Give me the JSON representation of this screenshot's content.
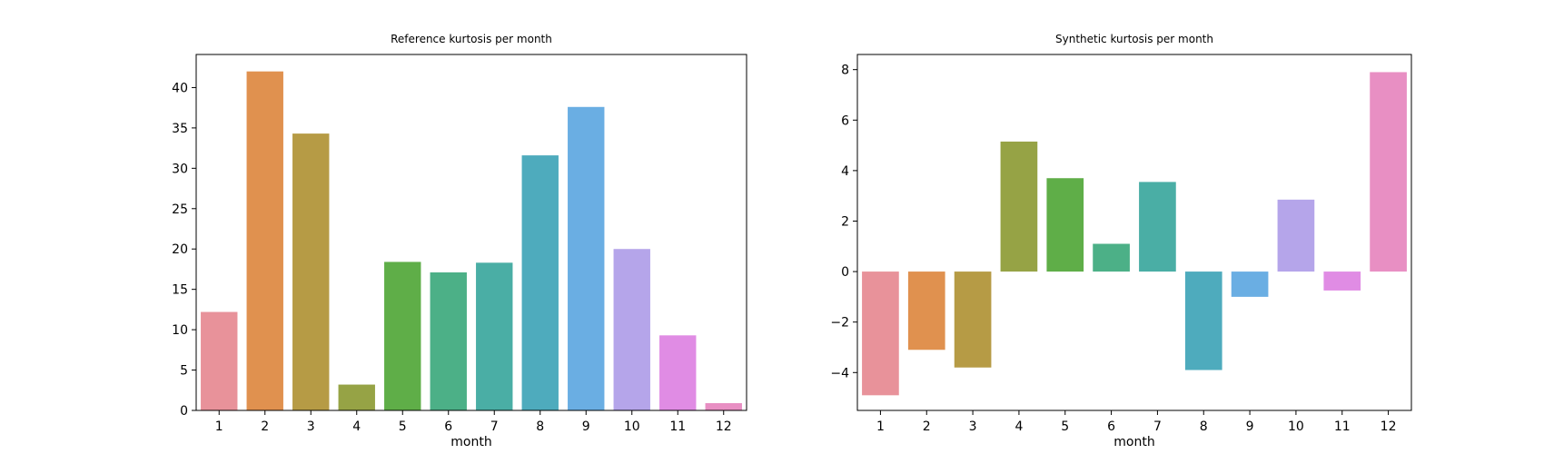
{
  "chart_data": [
    {
      "type": "bar",
      "title": "Reference kurtosis per month",
      "xlabel": "month",
      "ylabel": "",
      "categories": [
        "1",
        "2",
        "3",
        "4",
        "5",
        "6",
        "7",
        "8",
        "9",
        "10",
        "11",
        "12"
      ],
      "values": [
        12.2,
        42.0,
        34.3,
        3.2,
        18.4,
        17.1,
        18.3,
        31.6,
        37.6,
        20.0,
        9.3,
        0.9
      ],
      "ylim": [
        0,
        44.1
      ],
      "yticks": [
        0,
        5,
        10,
        15,
        20,
        25,
        30,
        35,
        40
      ],
      "ytick_labels": [
        "0",
        "5",
        "10",
        "15",
        "20",
        "25",
        "30",
        "35",
        "40"
      ],
      "colors": [
        "#e8929a",
        "#e0914f",
        "#b69b45",
        "#96a345",
        "#5fae48",
        "#4cb087",
        "#4aaea5",
        "#4eabbd",
        "#6aaee3",
        "#b5a5ea",
        "#e08ce4",
        "#e88fc3"
      ]
    },
    {
      "type": "bar",
      "title": "Synthetic kurtosis per month",
      "xlabel": "month",
      "ylabel": "",
      "categories": [
        "1",
        "2",
        "3",
        "4",
        "5",
        "6",
        "7",
        "8",
        "9",
        "10",
        "11",
        "12"
      ],
      "values": [
        -4.9,
        -3.1,
        -3.8,
        5.15,
        3.7,
        1.1,
        3.55,
        -3.9,
        -1.0,
        2.85,
        -0.75,
        7.9
      ],
      "ylim": [
        -5.5,
        8.6
      ],
      "yticks": [
        -4,
        -2,
        0,
        2,
        4,
        6,
        8
      ],
      "ytick_labels": [
        "−4",
        "−2",
        "0",
        "2",
        "4",
        "6",
        "8"
      ],
      "colors": [
        "#e8929a",
        "#e0914f",
        "#b69b45",
        "#96a345",
        "#5fae48",
        "#4cb087",
        "#4aaea5",
        "#4eabbd",
        "#6aaee3",
        "#b5a5ea",
        "#e08ce4",
        "#e88fc3"
      ]
    }
  ]
}
